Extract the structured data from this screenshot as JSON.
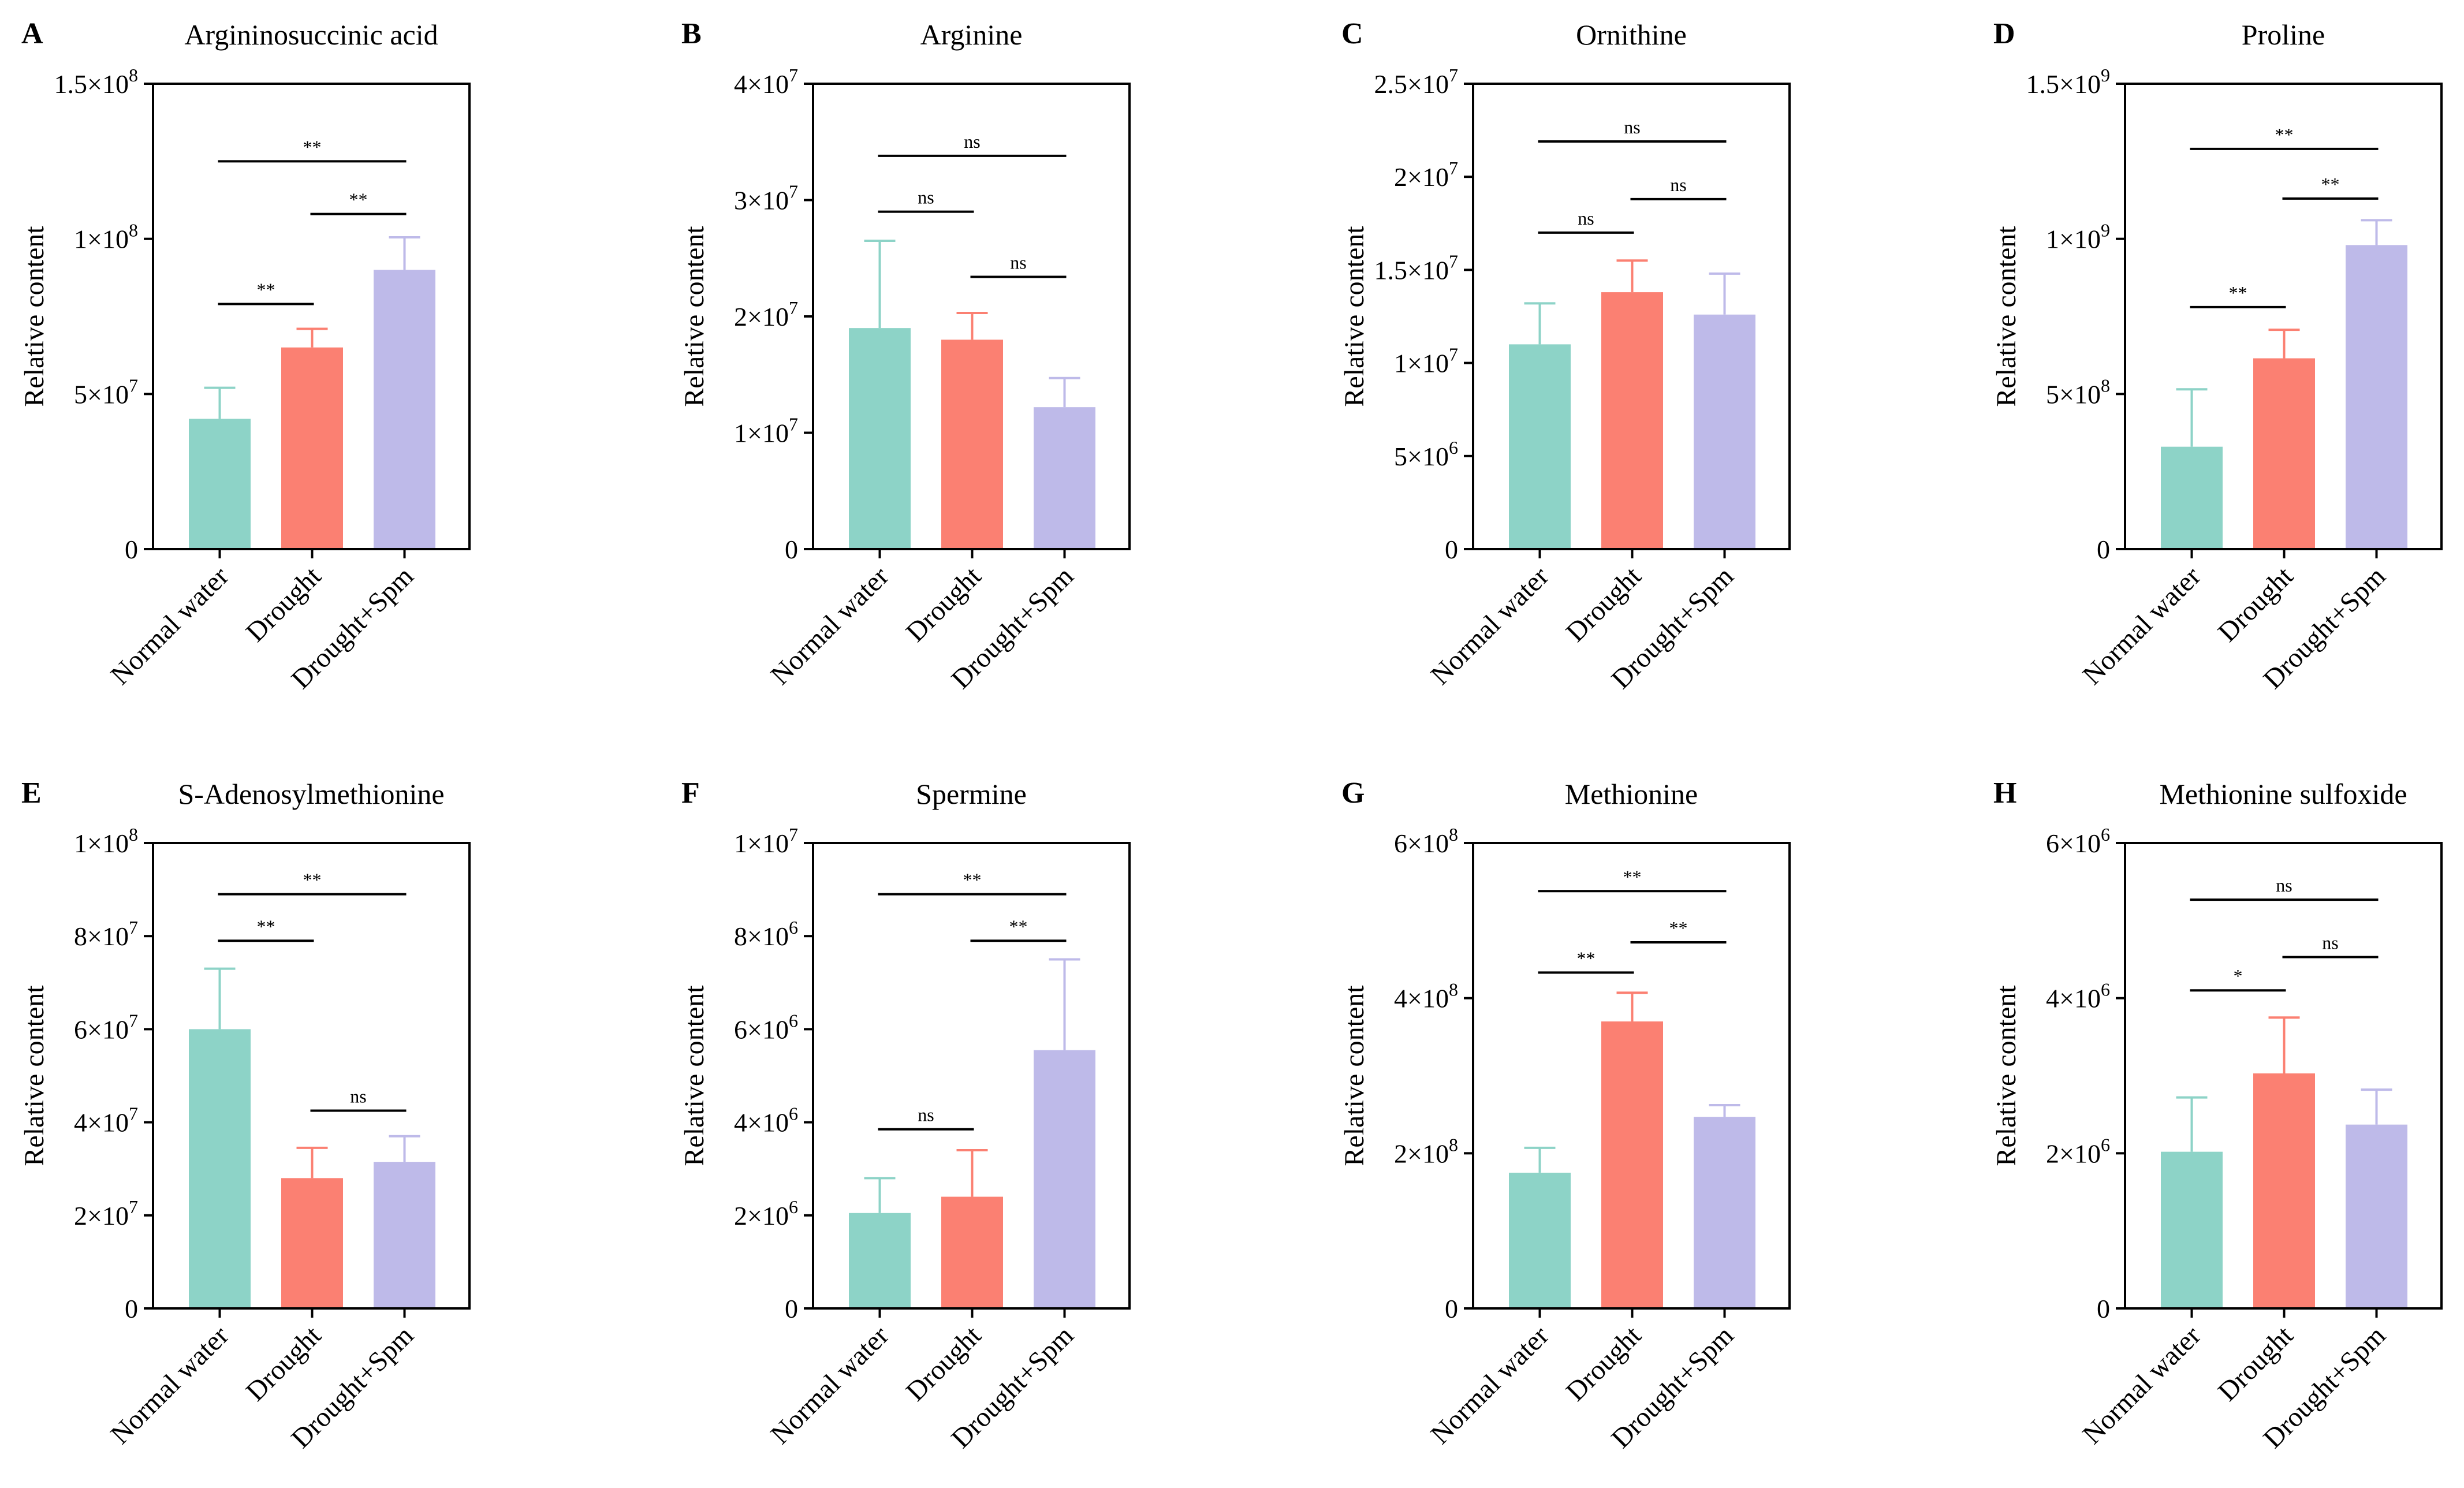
{
  "figure": {
    "ylabel": "Relative content"
  },
  "chart_data": [
    {
      "letter": "A",
      "title": "Argininosuccinic acid",
      "type": "bar",
      "ylabel": "Relative content",
      "categories": [
        "Normal water",
        "Drought",
        "Drought+Spm"
      ],
      "values": [
        42000000.0,
        65000000.0,
        90000000.0
      ],
      "errors": [
        10000000.0,
        6000000.0,
        10500000.0
      ],
      "ylim": [
        0,
        150000000.0
      ],
      "yticks": [
        {
          "value": 0,
          "mant": "0",
          "exp": ""
        },
        {
          "value": 50000000.0,
          "mant": "5×10",
          "exp": "7"
        },
        {
          "value": 100000000.0,
          "mant": "1×10",
          "exp": "8"
        },
        {
          "value": 150000000.0,
          "mant": "1.5×10",
          "exp": "8"
        }
      ],
      "sig": [
        {
          "from": 0,
          "to": 2,
          "label": "**",
          "y": 125000000.0
        },
        {
          "from": 1,
          "to": 2,
          "label": "**",
          "y": 108000000.0
        },
        {
          "from": 0,
          "to": 1,
          "label": "**",
          "y": 79000000.0
        }
      ]
    },
    {
      "letter": "B",
      "title": "Arginine",
      "type": "bar",
      "ylabel": "Relative content",
      "categories": [
        "Normal water",
        "Drought",
        "Drought+Spm"
      ],
      "values": [
        19000000.0,
        18000000.0,
        12200000.0
      ],
      "errors": [
        7500000.0,
        2300000.0,
        2500000.0
      ],
      "ylim": [
        0,
        40000000.0
      ],
      "yticks": [
        {
          "value": 0,
          "mant": "0",
          "exp": ""
        },
        {
          "value": 10000000.0,
          "mant": "1×10",
          "exp": "7"
        },
        {
          "value": 20000000.0,
          "mant": "2×10",
          "exp": "7"
        },
        {
          "value": 30000000.0,
          "mant": "3×10",
          "exp": "7"
        },
        {
          "value": 40000000.0,
          "mant": "4×10",
          "exp": "7"
        }
      ],
      "sig": [
        {
          "from": 0,
          "to": 2,
          "label": "ns",
          "y": 33800000.0
        },
        {
          "from": 0,
          "to": 1,
          "label": "ns",
          "y": 29000000.0
        },
        {
          "from": 1,
          "to": 2,
          "label": "ns",
          "y": 23400000.0
        }
      ]
    },
    {
      "letter": "C",
      "title": "Ornithine",
      "type": "bar",
      "ylabel": "Relative content",
      "categories": [
        "Normal water",
        "Drought",
        "Drought+Spm"
      ],
      "values": [
        11000000.0,
        13800000.0,
        12600000.0
      ],
      "errors": [
        2200000.0,
        1700000.0,
        2200000.0
      ],
      "ylim": [
        0,
        25000000.0
      ],
      "yticks": [
        {
          "value": 0,
          "mant": "0",
          "exp": ""
        },
        {
          "value": 5000000.0,
          "mant": "5×10",
          "exp": "6"
        },
        {
          "value": 10000000.0,
          "mant": "1×10",
          "exp": "7"
        },
        {
          "value": 15000000.0,
          "mant": "1.5×10",
          "exp": "7"
        },
        {
          "value": 20000000.0,
          "mant": "2×10",
          "exp": "7"
        },
        {
          "value": 25000000.0,
          "mant": "2.5×10",
          "exp": "7"
        }
      ],
      "sig": [
        {
          "from": 0,
          "to": 2,
          "label": "ns",
          "y": 21900000.0
        },
        {
          "from": 1,
          "to": 2,
          "label": "ns",
          "y": 18800000.0
        },
        {
          "from": 0,
          "to": 1,
          "label": "ns",
          "y": 17000000.0
        }
      ]
    },
    {
      "letter": "D",
      "title": "Proline",
      "type": "bar",
      "ylabel": "Relative content",
      "categories": [
        "Normal water",
        "Drought",
        "Drought+Spm"
      ],
      "values": [
        330000000.0,
        615000000.0,
        980000000.0
      ],
      "errors": [
        185000000.0,
        92000000.0,
        80000000.0
      ],
      "ylim": [
        0,
        1500000000.0
      ],
      "yticks": [
        {
          "value": 0,
          "mant": "0",
          "exp": ""
        },
        {
          "value": 500000000.0,
          "mant": "5×10",
          "exp": "8"
        },
        {
          "value": 1000000000.0,
          "mant": "1×10",
          "exp": "9"
        },
        {
          "value": 1500000000.0,
          "mant": "1.5×10",
          "exp": "9"
        }
      ],
      "sig": [
        {
          "from": 0,
          "to": 2,
          "label": "**",
          "y": 1290000000.0
        },
        {
          "from": 1,
          "to": 2,
          "label": "**",
          "y": 1130000000.0
        },
        {
          "from": 0,
          "to": 1,
          "label": "**",
          "y": 780000000.0
        }
      ]
    },
    {
      "letter": "E",
      "title": "S-Adenosylmethionine",
      "type": "bar",
      "ylabel": "Relative content",
      "categories": [
        "Normal water",
        "Drought",
        "Drought+Spm"
      ],
      "values": [
        60000000.0,
        28000000.0,
        31500000.0
      ],
      "errors": [
        13000000.0,
        6500000.0,
        5500000.0
      ],
      "ylim": [
        0,
        100000000.0
      ],
      "yticks": [
        {
          "value": 0,
          "mant": "0",
          "exp": ""
        },
        {
          "value": 20000000.0,
          "mant": "2×10",
          "exp": "7"
        },
        {
          "value": 40000000.0,
          "mant": "4×10",
          "exp": "7"
        },
        {
          "value": 60000000.0,
          "mant": "6×10",
          "exp": "7"
        },
        {
          "value": 80000000.0,
          "mant": "8×10",
          "exp": "7"
        },
        {
          "value": 100000000.0,
          "mant": "1×10",
          "exp": "8"
        }
      ],
      "sig": [
        {
          "from": 0,
          "to": 2,
          "label": "**",
          "y": 89000000.0
        },
        {
          "from": 0,
          "to": 1,
          "label": "**",
          "y": 79000000.0
        },
        {
          "from": 1,
          "to": 2,
          "label": "ns",
          "y": 42500000.0
        }
      ]
    },
    {
      "letter": "F",
      "title": "Spermine",
      "type": "bar",
      "ylabel": "Relative content",
      "categories": [
        "Normal water",
        "Drought",
        "Drought+Spm"
      ],
      "values": [
        2050000.0,
        2400000.0,
        5550000.0
      ],
      "errors": [
        750000.0,
        1000000.0,
        1950000.0
      ],
      "ylim": [
        0,
        10000000.0
      ],
      "yticks": [
        {
          "value": 0,
          "mant": "0",
          "exp": ""
        },
        {
          "value": 2000000.0,
          "mant": "2×10",
          "exp": "6"
        },
        {
          "value": 4000000.0,
          "mant": "4×10",
          "exp": "6"
        },
        {
          "value": 6000000.0,
          "mant": "6×10",
          "exp": "6"
        },
        {
          "value": 8000000.0,
          "mant": "8×10",
          "exp": "6"
        },
        {
          "value": 10000000.0,
          "mant": "1×10",
          "exp": "7"
        }
      ],
      "sig": [
        {
          "from": 0,
          "to": 2,
          "label": "**",
          "y": 8900000.0
        },
        {
          "from": 1,
          "to": 2,
          "label": "**",
          "y": 7900000.0
        },
        {
          "from": 0,
          "to": 1,
          "label": "ns",
          "y": 3850000.0
        }
      ]
    },
    {
      "letter": "G",
      "title": "Methionine",
      "type": "bar",
      "ylabel": "Relative content",
      "categories": [
        "Normal water",
        "Drought",
        "Drought+Spm"
      ],
      "values": [
        175000000.0,
        370000000.0,
        247000000.0
      ],
      "errors": [
        32000000.0,
        37000000.0,
        15000000.0
      ],
      "ylim": [
        0,
        600000000.0
      ],
      "yticks": [
        {
          "value": 0,
          "mant": "0",
          "exp": ""
        },
        {
          "value": 200000000.0,
          "mant": "2×10",
          "exp": "8"
        },
        {
          "value": 400000000.0,
          "mant": "4×10",
          "exp": "8"
        },
        {
          "value": 600000000.0,
          "mant": "6×10",
          "exp": "8"
        }
      ],
      "sig": [
        {
          "from": 0,
          "to": 2,
          "label": "**",
          "y": 538000000.0
        },
        {
          "from": 1,
          "to": 2,
          "label": "**",
          "y": 472000000.0
        },
        {
          "from": 0,
          "to": 1,
          "label": "**",
          "y": 433000000.0
        }
      ]
    },
    {
      "letter": "H",
      "title": "Methionine sulfoxide",
      "type": "bar",
      "ylabel": "Relative content",
      "categories": [
        "Normal water",
        "Drought",
        "Drought+Spm"
      ],
      "values": [
        2020000.0,
        3030000.0,
        2370000.0
      ],
      "errors": [
        700000.0,
        720000.0,
        450000.0
      ],
      "ylim": [
        0,
        6000000.0
      ],
      "yticks": [
        {
          "value": 0,
          "mant": "0",
          "exp": ""
        },
        {
          "value": 2000000.0,
          "mant": "2×10",
          "exp": "6"
        },
        {
          "value": 4000000.0,
          "mant": "4×10",
          "exp": "6"
        },
        {
          "value": 6000000.0,
          "mant": "6×10",
          "exp": "6"
        }
      ],
      "sig": [
        {
          "from": 0,
          "to": 2,
          "label": "ns",
          "y": 5270000.0
        },
        {
          "from": 1,
          "to": 2,
          "label": "ns",
          "y": 4530000.0
        },
        {
          "from": 0,
          "to": 1,
          "label": "*",
          "y": 4100000.0
        }
      ]
    }
  ],
  "colors": {
    "bar_fill": [
      "#8dd3c7",
      "#fb8072",
      "#bebae9"
    ],
    "error_bar": [
      "#8dd3c7",
      "#fb8072",
      "#bebae9"
    ],
    "axis": "#000000"
  }
}
